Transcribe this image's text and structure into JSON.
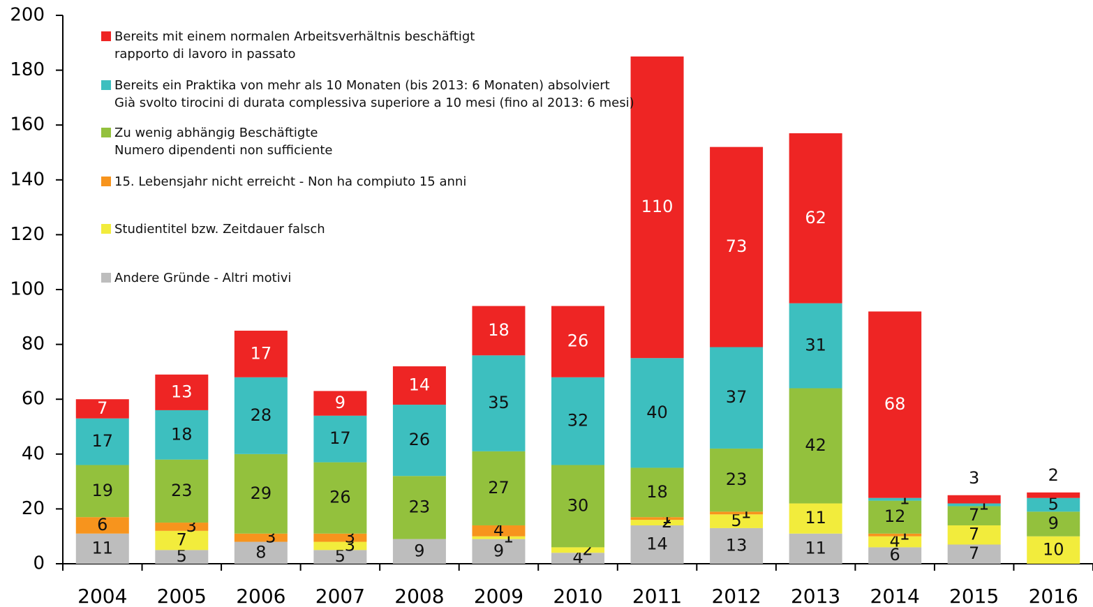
{
  "chart_data": {
    "type": "stacked_bar",
    "categories": [
      "2004",
      "2005",
      "2006",
      "2007",
      "2008",
      "2009",
      "2010",
      "2011",
      "2012",
      "2013",
      "2014",
      "2015",
      "2016"
    ],
    "series": [
      {
        "name": "Andere Gründe - Altri motivi",
        "color": "#bdbdbd",
        "values": [
          11,
          5,
          8,
          5,
          9,
          9,
          4,
          14,
          13,
          11,
          6,
          7,
          null
        ]
      },
      {
        "name": "Studientitel bzw. Zeitdauer falsch",
        "color": "#f2ec3c",
        "values": [
          null,
          7,
          null,
          3,
          null,
          1,
          2,
          2,
          5,
          11,
          4,
          7,
          10
        ]
      },
      {
        "name": "15. Lebensjahr nicht erreicht - Non ha compiuto 15 anni",
        "color": "#f7941d",
        "values": [
          6,
          3,
          3,
          3,
          null,
          4,
          null,
          1,
          1,
          null,
          1,
          null,
          null
        ]
      },
      {
        "name": "Zu wenig abhängig Beschäftigte\nNumero dipendenti non sufficiente",
        "color": "#93c13d",
        "values": [
          19,
          23,
          29,
          26,
          23,
          27,
          30,
          18,
          23,
          42,
          12,
          7,
          9
        ]
      },
      {
        "name": "Bereits ein Praktika von mehr als 10 Monaten (bis 2013: 6 Monaten) absolviert\nGià svolto tirocini di durata complessiva superiore a 10 mesi (fino al 2013: 6 mesi)",
        "color": "#3dbfbf",
        "values": [
          17,
          18,
          28,
          17,
          26,
          35,
          32,
          40,
          37,
          31,
          1,
          1,
          5
        ]
      },
      {
        "name": "Bereits mit einem normalen Arbeitsverhältnis beschäftigt\nrapporto di lavoro in passato",
        "color": "#ee2524",
        "values": [
          7,
          13,
          17,
          9,
          14,
          18,
          26,
          110,
          73,
          62,
          68,
          3,
          2
        ]
      }
    ],
    "ylim": [
      0,
      200
    ],
    "yticks": [
      0,
      20,
      40,
      60,
      80,
      100,
      120,
      140,
      160,
      180,
      200
    ],
    "grid": false,
    "legend": "top-left"
  }
}
